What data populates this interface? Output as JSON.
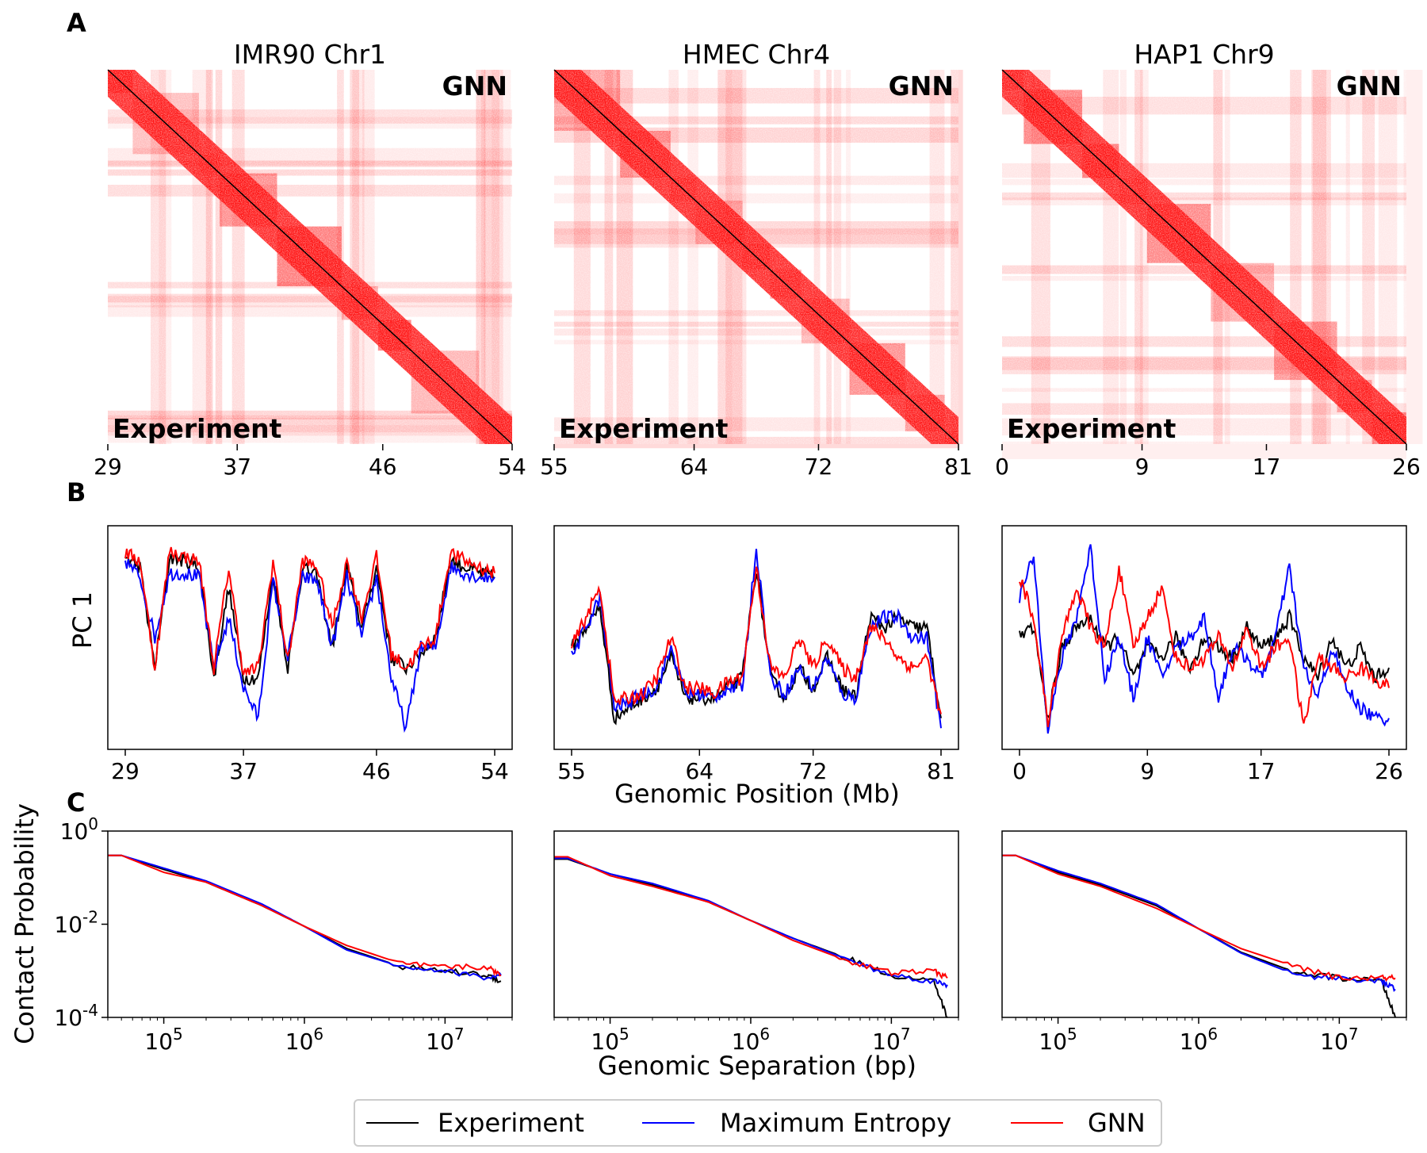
{
  "colors": {
    "experiment": "#000000",
    "max_entropy": "#0000ff",
    "gnn": "#ff0000",
    "heatmap": "#ff0000",
    "background": "#ffffff"
  },
  "panel_letters": [
    "A",
    "B",
    "C"
  ],
  "heatmap_labels": {
    "upper": "GNN",
    "lower": "Experiment"
  },
  "axis_labels": {
    "pc_ylabel": "PC 1",
    "pc_xlabel": "Genomic Position (Mb)",
    "ps_ylabel": "Contact Probability",
    "ps_xlabel": "Genomic Separation (bp)"
  },
  "legend": {
    "placement": "bottom-center",
    "entries": [
      {
        "label": "Experiment",
        "color": "#000000"
      },
      {
        "label": "Maximum Entropy",
        "color": "#0000ff"
      },
      {
        "label": "GNN",
        "color": "#ff0000"
      }
    ]
  },
  "chart_data": [
    {
      "type": "heatmap",
      "title": "IMR90 Chr1",
      "xticks": [
        "29",
        "37",
        "46",
        "54"
      ],
      "xlim": [
        29,
        54
      ]
    },
    {
      "type": "heatmap",
      "title": "HMEC Chr4",
      "xticks": [
        "55",
        "64",
        "72",
        "81"
      ],
      "xlim": [
        55,
        81
      ]
    },
    {
      "type": "heatmap",
      "title": "HAP1 Chr9",
      "xticks": [
        "0",
        "9",
        "17",
        "26"
      ],
      "xlim": [
        0,
        26
      ]
    },
    {
      "type": "line",
      "xticks": [
        "29",
        "37",
        "46",
        "54"
      ],
      "xlim": [
        29,
        54
      ],
      "series": [
        {
          "name": "Experiment",
          "x": [
            29,
            30,
            31,
            32,
            33,
            34,
            35,
            36,
            37,
            38,
            39,
            40,
            41,
            42,
            43,
            44,
            45,
            46,
            47,
            48,
            49,
            50,
            51,
            52,
            53,
            54
          ],
          "y": [
            0.9,
            0.85,
            0.35,
            0.9,
            0.88,
            0.85,
            0.3,
            0.75,
            0.3,
            0.3,
            0.82,
            0.35,
            0.85,
            0.8,
            0.45,
            0.85,
            0.55,
            0.85,
            0.4,
            0.35,
            0.42,
            0.5,
            0.88,
            0.85,
            0.82,
            0.8
          ]
        },
        {
          "name": "Maximum Entropy",
          "x": [
            29,
            30,
            31,
            32,
            33,
            34,
            35,
            36,
            37,
            38,
            39,
            40,
            41,
            42,
            43,
            44,
            45,
            46,
            47,
            48,
            49,
            50,
            51,
            52,
            53,
            54
          ],
          "y": [
            0.88,
            0.8,
            0.5,
            0.82,
            0.82,
            0.8,
            0.35,
            0.6,
            0.25,
            0.1,
            0.78,
            0.4,
            0.8,
            0.78,
            0.45,
            0.8,
            0.5,
            0.8,
            0.3,
            0.05,
            0.45,
            0.45,
            0.85,
            0.82,
            0.8,
            0.8
          ]
        },
        {
          "name": "GNN",
          "x": [
            29,
            30,
            31,
            32,
            33,
            34,
            35,
            36,
            37,
            38,
            39,
            40,
            41,
            42,
            43,
            44,
            45,
            46,
            47,
            48,
            49,
            50,
            51,
            52,
            53,
            54
          ],
          "y": [
            0.92,
            0.88,
            0.35,
            0.93,
            0.9,
            0.88,
            0.35,
            0.85,
            0.32,
            0.35,
            0.88,
            0.38,
            0.88,
            0.85,
            0.55,
            0.88,
            0.6,
            0.9,
            0.42,
            0.35,
            0.45,
            0.5,
            0.92,
            0.88,
            0.85,
            0.82
          ]
        }
      ]
    },
    {
      "type": "line",
      "xticks": [
        "55",
        "64",
        "72",
        "81"
      ],
      "xlim": [
        55,
        81
      ],
      "series": [
        {
          "name": "Experiment",
          "x": [
            55,
            56,
            57,
            58,
            59,
            60,
            61,
            62,
            63,
            64,
            65,
            66,
            67,
            68,
            69,
            70,
            71,
            72,
            73,
            74,
            75,
            76,
            77,
            78,
            79,
            80,
            81
          ],
          "y": [
            0.45,
            0.55,
            0.65,
            0.1,
            0.15,
            0.2,
            0.25,
            0.4,
            0.2,
            0.2,
            0.2,
            0.25,
            0.3,
            0.85,
            0.3,
            0.2,
            0.35,
            0.25,
            0.4,
            0.25,
            0.2,
            0.6,
            0.55,
            0.6,
            0.55,
            0.55,
            0.1
          ]
        },
        {
          "name": "Maximum Entropy",
          "x": [
            55,
            56,
            57,
            58,
            59,
            60,
            61,
            62,
            63,
            64,
            65,
            66,
            67,
            68,
            69,
            70,
            71,
            72,
            73,
            74,
            75,
            76,
            77,
            78,
            79,
            80,
            81
          ],
          "y": [
            0.4,
            0.55,
            0.7,
            0.15,
            0.18,
            0.22,
            0.25,
            0.45,
            0.22,
            0.22,
            0.2,
            0.25,
            0.25,
            0.95,
            0.3,
            0.22,
            0.35,
            0.25,
            0.4,
            0.22,
            0.2,
            0.55,
            0.6,
            0.6,
            0.5,
            0.5,
            0.05
          ]
        },
        {
          "name": "GNN",
          "x": [
            55,
            56,
            57,
            58,
            59,
            60,
            61,
            62,
            63,
            64,
            65,
            66,
            67,
            68,
            69,
            70,
            71,
            72,
            73,
            74,
            75,
            76,
            77,
            78,
            79,
            80,
            81
          ],
          "y": [
            0.45,
            0.6,
            0.75,
            0.18,
            0.2,
            0.22,
            0.3,
            0.5,
            0.25,
            0.25,
            0.22,
            0.28,
            0.3,
            0.85,
            0.35,
            0.3,
            0.5,
            0.35,
            0.5,
            0.35,
            0.3,
            0.55,
            0.5,
            0.4,
            0.35,
            0.4,
            0.12
          ]
        }
      ]
    },
    {
      "type": "line",
      "xticks": [
        "0",
        "9",
        "17",
        "26"
      ],
      "xlim": [
        0,
        26
      ],
      "series": [
        {
          "name": "Experiment",
          "x": [
            0,
            1,
            2,
            3,
            4,
            5,
            6,
            7,
            8,
            9,
            10,
            11,
            12,
            13,
            14,
            15,
            16,
            17,
            18,
            19,
            20,
            21,
            22,
            23,
            24,
            25,
            26
          ],
          "y": [
            0.5,
            0.55,
            0.1,
            0.45,
            0.55,
            0.6,
            0.45,
            0.5,
            0.3,
            0.45,
            0.4,
            0.5,
            0.35,
            0.5,
            0.45,
            0.4,
            0.55,
            0.45,
            0.5,
            0.6,
            0.4,
            0.3,
            0.5,
            0.35,
            0.45,
            0.3,
            0.35
          ]
        },
        {
          "name": "Maximum Entropy",
          "x": [
            0,
            1,
            2,
            3,
            4,
            5,
            6,
            7,
            8,
            9,
            10,
            11,
            12,
            13,
            14,
            15,
            16,
            17,
            18,
            19,
            20,
            21,
            22,
            23,
            24,
            25,
            26
          ],
          "y": [
            0.7,
            0.9,
            0.05,
            0.4,
            0.6,
            0.95,
            0.3,
            0.5,
            0.2,
            0.5,
            0.3,
            0.45,
            0.5,
            0.6,
            0.2,
            0.45,
            0.4,
            0.3,
            0.5,
            0.85,
            0.35,
            0.2,
            0.45,
            0.25,
            0.15,
            0.1,
            0.1
          ]
        },
        {
          "name": "GNN",
          "x": [
            0,
            1,
            2,
            3,
            4,
            5,
            6,
            7,
            8,
            9,
            10,
            11,
            12,
            13,
            14,
            15,
            16,
            17,
            18,
            19,
            20,
            21,
            22,
            23,
            24,
            25,
            26
          ],
          "y": [
            0.8,
            0.6,
            0.08,
            0.5,
            0.75,
            0.55,
            0.45,
            0.85,
            0.45,
            0.6,
            0.75,
            0.4,
            0.35,
            0.4,
            0.5,
            0.35,
            0.55,
            0.35,
            0.45,
            0.5,
            0.05,
            0.4,
            0.35,
            0.3,
            0.35,
            0.3,
            0.25
          ]
        }
      ]
    },
    {
      "type": "line",
      "log_x": true,
      "log_y": true,
      "xlim": [
        40000,
        30000000
      ],
      "ylim": [
        0.0001,
        1
      ],
      "xticks": [
        "10^5",
        "10^6",
        "10^7"
      ],
      "yticks": [
        "10^0",
        "10^-2",
        "10^-4"
      ],
      "series": [
        {
          "name": "Experiment",
          "x": [
            40000,
            50000,
            100000,
            200000,
            500000,
            1000000,
            2000000,
            5000000,
            10000000,
            20000000,
            25000000
          ],
          "y": [
            0.3,
            0.3,
            0.15,
            0.08,
            0.025,
            0.009,
            0.003,
            0.0012,
            0.001,
            0.0008,
            0.0006
          ]
        },
        {
          "name": "Maximum Entropy",
          "x": [
            40000,
            50000,
            100000,
            200000,
            500000,
            1000000,
            2000000,
            5000000,
            10000000,
            20000000,
            25000000
          ],
          "y": [
            0.3,
            0.3,
            0.16,
            0.085,
            0.027,
            0.009,
            0.0028,
            0.0012,
            0.001,
            0.0007,
            0.0008
          ]
        },
        {
          "name": "GNN",
          "x": [
            40000,
            50000,
            100000,
            200000,
            500000,
            1000000,
            2000000,
            5000000,
            10000000,
            20000000,
            25000000
          ],
          "y": [
            0.3,
            0.3,
            0.13,
            0.08,
            0.025,
            0.009,
            0.0035,
            0.0014,
            0.0012,
            0.0012,
            0.0008
          ]
        }
      ]
    },
    {
      "type": "line",
      "log_x": true,
      "log_y": true,
      "xlim": [
        40000,
        30000000
      ],
      "ylim": [
        0.0001,
        1
      ],
      "xticks": [
        "10^5",
        "10^6",
        "10^7"
      ],
      "series": [
        {
          "name": "Experiment",
          "x": [
            40000,
            50000,
            100000,
            200000,
            500000,
            1000000,
            2000000,
            5000000,
            10000000,
            20000000,
            25000000
          ],
          "y": [
            0.25,
            0.25,
            0.12,
            0.07,
            0.03,
            0.012,
            0.005,
            0.0018,
            0.0008,
            0.0006,
            0.0001
          ]
        },
        {
          "name": "Maximum Entropy",
          "x": [
            40000,
            50000,
            100000,
            200000,
            500000,
            1000000,
            2000000,
            5000000,
            10000000,
            20000000,
            25000000
          ],
          "y": [
            0.26,
            0.26,
            0.12,
            0.075,
            0.032,
            0.012,
            0.005,
            0.0017,
            0.0008,
            0.0006,
            0.0005
          ]
        },
        {
          "name": "GNN",
          "x": [
            40000,
            50000,
            100000,
            200000,
            500000,
            1000000,
            2000000,
            5000000,
            10000000,
            20000000,
            25000000
          ],
          "y": [
            0.28,
            0.28,
            0.11,
            0.065,
            0.03,
            0.012,
            0.0045,
            0.0016,
            0.0009,
            0.001,
            0.0007
          ]
        }
      ]
    },
    {
      "type": "line",
      "log_x": true,
      "log_y": true,
      "xlim": [
        40000,
        30000000
      ],
      "ylim": [
        0.0001,
        1
      ],
      "xticks": [
        "10^5",
        "10^6",
        "10^7"
      ],
      "series": [
        {
          "name": "Experiment",
          "x": [
            40000,
            50000,
            100000,
            200000,
            500000,
            1000000,
            2000000,
            5000000,
            10000000,
            20000000,
            25000000
          ],
          "y": [
            0.3,
            0.3,
            0.13,
            0.07,
            0.025,
            0.008,
            0.0025,
            0.0009,
            0.0007,
            0.0006,
            0.0001
          ]
        },
        {
          "name": "Maximum Entropy",
          "x": [
            40000,
            50000,
            100000,
            200000,
            500000,
            1000000,
            2000000,
            5000000,
            10000000,
            20000000,
            25000000
          ],
          "y": [
            0.3,
            0.3,
            0.14,
            0.075,
            0.027,
            0.008,
            0.0024,
            0.0008,
            0.0007,
            0.0006,
            0.0004
          ]
        },
        {
          "name": "GNN",
          "x": [
            40000,
            50000,
            100000,
            200000,
            500000,
            1000000,
            2000000,
            5000000,
            10000000,
            20000000,
            25000000
          ],
          "y": [
            0.3,
            0.3,
            0.12,
            0.065,
            0.022,
            0.008,
            0.003,
            0.0012,
            0.0007,
            0.0007,
            0.0007
          ]
        }
      ]
    }
  ]
}
